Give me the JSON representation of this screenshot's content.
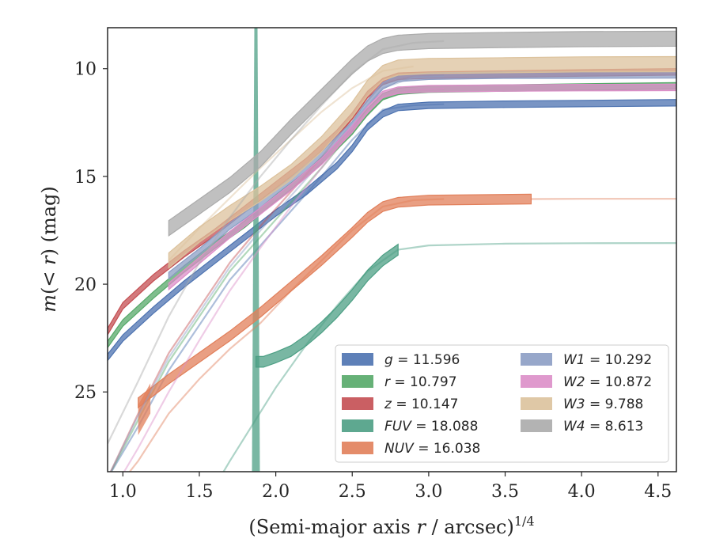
{
  "chart_data": {
    "type": "line",
    "title": "",
    "xlabel": "(Semi-major axis r / arcsec)^{1/4}",
    "xlabel_parts": {
      "prefix": "(Semi-major axis ",
      "var": "r",
      "middle": " / arcsec)",
      "sup": "1/4"
    },
    "ylabel": "m(< r) (mag)",
    "ylabel_parts": {
      "m": "m",
      "open": "(",
      "lt": "<",
      "r": "r",
      "close": ")",
      "unit": " (mag)"
    },
    "xlim": [
      0.9,
      4.62
    ],
    "ylim": [
      28.7,
      8.1
    ],
    "y_inverted": true,
    "xticks": [
      1.0,
      1.5,
      2.0,
      2.5,
      3.0,
      3.5,
      4.0,
      4.5
    ],
    "xtick_labels": [
      "1.0",
      "1.5",
      "2.0",
      "2.5",
      "3.0",
      "3.5",
      "4.0",
      "4.5"
    ],
    "yticks": [
      10,
      15,
      20,
      25
    ],
    "ytick_labels": [
      "10",
      "15",
      "20",
      "25"
    ],
    "grid": false,
    "legend_position": "lower-right",
    "legend_columns": 2,
    "series": [
      {
        "name": "g",
        "value_label": "11.596",
        "color": "#4c72b0",
        "main": [
          [
            0.9,
            23.4
          ],
          [
            1.0,
            22.5
          ],
          [
            1.2,
            21.2
          ],
          [
            1.4,
            20.0
          ],
          [
            1.6,
            18.9
          ],
          [
            1.8,
            17.8
          ],
          [
            2.0,
            16.7
          ],
          [
            2.2,
            15.7
          ],
          [
            2.4,
            14.5
          ],
          [
            2.5,
            13.7
          ],
          [
            2.6,
            12.7
          ],
          [
            2.7,
            12.1
          ],
          [
            2.8,
            11.8
          ],
          [
            3.0,
            11.7
          ],
          [
            3.5,
            11.65
          ],
          [
            4.0,
            11.62
          ],
          [
            4.62,
            11.58
          ]
        ],
        "main_width": 0.3,
        "faint": [
          [
            0.9,
            29.0
          ],
          [
            1.1,
            26.6
          ],
          [
            1.3,
            24.0
          ],
          [
            1.5,
            21.9
          ],
          [
            1.7,
            19.8
          ],
          [
            1.9,
            18.2
          ],
          [
            2.1,
            16.6
          ],
          [
            2.3,
            15.0
          ],
          [
            2.5,
            13.3
          ],
          [
            2.7,
            11.9
          ],
          [
            2.9,
            11.7
          ],
          [
            3.1,
            11.65
          ]
        ],
        "faint_width": 0.5,
        "band_start": null
      },
      {
        "name": "r",
        "value_label": "10.797",
        "color": "#55a868",
        "main": [
          [
            0.9,
            22.8
          ],
          [
            1.0,
            21.8
          ],
          [
            1.2,
            20.5
          ],
          [
            1.4,
            19.3
          ],
          [
            1.6,
            18.2
          ],
          [
            1.8,
            17.2
          ],
          [
            2.0,
            16.0
          ],
          [
            2.2,
            14.9
          ],
          [
            2.4,
            13.6
          ],
          [
            2.5,
            12.9
          ],
          [
            2.6,
            12.0
          ],
          [
            2.7,
            11.3
          ],
          [
            2.8,
            11.05
          ],
          [
            3.0,
            10.95
          ],
          [
            3.5,
            10.9
          ],
          [
            4.0,
            10.85
          ],
          [
            4.62,
            10.8
          ]
        ],
        "main_width": 0.3,
        "faint": [
          [
            0.9,
            29.0
          ],
          [
            1.1,
            26.3
          ],
          [
            1.3,
            23.6
          ],
          [
            1.5,
            21.5
          ],
          [
            1.7,
            19.4
          ],
          [
            1.9,
            17.8
          ],
          [
            2.1,
            16.2
          ],
          [
            2.3,
            14.6
          ],
          [
            2.5,
            12.9
          ],
          [
            2.7,
            11.4
          ],
          [
            2.9,
            11.0
          ],
          [
            3.1,
            10.95
          ]
        ],
        "faint_width": 0.5,
        "band_start": null
      },
      {
        "name": "z",
        "value_label": "10.147",
        "color": "#c44e52",
        "main": [
          [
            0.9,
            22.2
          ],
          [
            1.0,
            21.0
          ],
          [
            1.2,
            19.7
          ],
          [
            1.4,
            18.6
          ],
          [
            1.6,
            17.6
          ],
          [
            1.8,
            16.5
          ],
          [
            2.0,
            15.4
          ],
          [
            2.2,
            14.3
          ],
          [
            2.4,
            13.0
          ],
          [
            2.5,
            12.2
          ],
          [
            2.6,
            11.2
          ],
          [
            2.7,
            10.6
          ],
          [
            2.8,
            10.35
          ],
          [
            3.0,
            10.3
          ],
          [
            3.5,
            10.25
          ],
          [
            4.0,
            10.2
          ],
          [
            4.62,
            10.15
          ]
        ],
        "main_width": 0.3,
        "faint": [
          [
            0.9,
            29.0
          ],
          [
            1.1,
            26.0
          ],
          [
            1.3,
            23.2
          ],
          [
            1.5,
            21.1
          ],
          [
            1.7,
            19.0
          ],
          [
            1.9,
            17.3
          ],
          [
            2.1,
            15.7
          ],
          [
            2.3,
            14.1
          ],
          [
            2.5,
            12.3
          ],
          [
            2.7,
            10.7
          ],
          [
            2.9,
            10.35
          ],
          [
            3.1,
            10.3
          ]
        ],
        "faint_width": 0.5,
        "band_start": null
      },
      {
        "name": "FUV",
        "value_label": "18.088",
        "color": "#4c9f84",
        "main": [
          [
            1.87,
            23.6
          ],
          [
            1.92,
            23.6
          ],
          [
            2.0,
            23.4
          ],
          [
            2.1,
            23.1
          ],
          [
            2.2,
            22.6
          ],
          [
            2.3,
            22.0
          ],
          [
            2.4,
            21.3
          ],
          [
            2.5,
            20.5
          ],
          [
            2.6,
            19.6
          ],
          [
            2.7,
            18.9
          ],
          [
            2.8,
            18.4
          ]
        ],
        "main_width": 0.5,
        "faint": [
          [
            2.8,
            18.4
          ],
          [
            3.0,
            18.2
          ],
          [
            3.5,
            18.12
          ],
          [
            4.0,
            18.1
          ],
          [
            4.62,
            18.09
          ]
        ],
        "faint_width": 0.5,
        "faint_extra": [
          [
            1.55,
            30.0
          ],
          [
            1.7,
            28.2
          ],
          [
            1.85,
            26.5
          ],
          [
            2.0,
            24.8
          ],
          [
            2.2,
            22.8
          ],
          [
            2.4,
            21.0
          ],
          [
            2.6,
            19.4
          ],
          [
            2.8,
            18.4
          ]
        ],
        "band_start": null,
        "spike": {
          "x": 1.87,
          "top": 8.1,
          "bottom": 28.7
        }
      },
      {
        "name": "NUV",
        "value_label": "16.038",
        "color": "#e17f5a",
        "main": [
          [
            1.1,
            25.5
          ],
          [
            1.3,
            24.4
          ],
          [
            1.5,
            23.4
          ],
          [
            1.7,
            22.4
          ],
          [
            1.9,
            21.3
          ],
          [
            2.1,
            20.1
          ],
          [
            2.3,
            18.9
          ],
          [
            2.5,
            17.6
          ],
          [
            2.6,
            16.9
          ],
          [
            2.7,
            16.4
          ],
          [
            2.8,
            16.2
          ],
          [
            3.0,
            16.1
          ],
          [
            3.67,
            16.05
          ]
        ],
        "main_width": 0.45,
        "faint": [
          [
            3.67,
            16.05
          ],
          [
            4.0,
            16.04
          ],
          [
            4.62,
            16.04
          ]
        ],
        "faint_width": 0.4,
        "faint_extra": [
          [
            0.9,
            30.0
          ],
          [
            1.1,
            28.2
          ],
          [
            1.3,
            26.0
          ],
          [
            1.5,
            24.4
          ],
          [
            1.7,
            23.0
          ],
          [
            1.9,
            21.8
          ],
          [
            2.1,
            20.3
          ],
          [
            2.3,
            18.9
          ],
          [
            2.5,
            17.5
          ],
          [
            2.7,
            16.4
          ],
          [
            2.9,
            16.1
          ],
          [
            3.1,
            16.05
          ]
        ],
        "band_start": [
          1.1,
          25.6,
          27.0
        ]
      },
      {
        "name": "W1",
        "value_label": "10.292",
        "color": "#8c9dc4",
        "main": [
          [
            1.3,
            19.6
          ],
          [
            1.5,
            18.5
          ],
          [
            1.7,
            17.3
          ],
          [
            1.9,
            16.3
          ],
          [
            2.1,
            15.2
          ],
          [
            2.3,
            14.0
          ],
          [
            2.5,
            12.6
          ],
          [
            2.6,
            11.6
          ],
          [
            2.7,
            10.8
          ],
          [
            2.8,
            10.45
          ],
          [
            3.0,
            10.35
          ],
          [
            3.5,
            10.3
          ],
          [
            4.0,
            10.3
          ],
          [
            4.62,
            10.29
          ]
        ],
        "main_width": 0.3,
        "faint": [
          [
            0.9,
            29.0
          ],
          [
            1.1,
            26.1
          ],
          [
            1.3,
            23.4
          ],
          [
            1.5,
            21.3
          ],
          [
            1.7,
            19.2
          ],
          [
            1.9,
            17.5
          ],
          [
            2.1,
            15.9
          ],
          [
            2.3,
            14.3
          ],
          [
            2.5,
            12.5
          ],
          [
            2.7,
            10.9
          ],
          [
            2.9,
            10.4
          ],
          [
            3.1,
            10.35
          ]
        ],
        "faint_width": 0.5,
        "band_start": null
      },
      {
        "name": "W2",
        "value_label": "10.872",
        "color": "#dc8ec8",
        "main": [
          [
            1.3,
            20.1
          ],
          [
            1.5,
            18.9
          ],
          [
            1.7,
            17.7
          ],
          [
            1.9,
            16.6
          ],
          [
            2.1,
            15.5
          ],
          [
            2.3,
            14.3
          ],
          [
            2.5,
            12.8
          ],
          [
            2.6,
            11.9
          ],
          [
            2.7,
            11.2
          ],
          [
            2.8,
            11.0
          ],
          [
            3.0,
            10.93
          ],
          [
            3.5,
            10.9
          ],
          [
            4.0,
            10.88
          ],
          [
            4.62,
            10.87
          ]
        ],
        "main_width": 0.3,
        "faint": [
          [
            0.9,
            30.0
          ],
          [
            1.1,
            27.6
          ],
          [
            1.3,
            25.0
          ],
          [
            1.5,
            22.6
          ],
          [
            1.7,
            20.3
          ],
          [
            1.9,
            18.3
          ],
          [
            2.1,
            16.4
          ],
          [
            2.3,
            14.6
          ],
          [
            2.5,
            12.8
          ],
          [
            2.7,
            11.3
          ],
          [
            2.9,
            11.0
          ],
          [
            3.1,
            10.93
          ]
        ],
        "faint_width": 0.5,
        "band_start": null
      },
      {
        "name": "W3",
        "value_label": "9.788",
        "color": "#dcc29c",
        "main": [
          [
            1.3,
            18.9
          ],
          [
            1.5,
            17.7
          ],
          [
            1.7,
            16.7
          ],
          [
            1.9,
            15.8
          ],
          [
            2.1,
            14.8
          ],
          [
            2.3,
            13.5
          ],
          [
            2.5,
            11.9
          ],
          [
            2.6,
            10.9
          ],
          [
            2.7,
            10.2
          ],
          [
            2.8,
            9.95
          ],
          [
            3.0,
            9.88
          ],
          [
            3.5,
            9.84
          ],
          [
            4.0,
            9.8
          ],
          [
            4.62,
            9.79
          ]
        ],
        "main_width": 0.7,
        "faint": [
          [
            1.3,
            18.9
          ],
          [
            1.5,
            17.4
          ],
          [
            1.7,
            16.0
          ],
          [
            1.9,
            14.6
          ],
          [
            2.1,
            13.3
          ],
          [
            2.3,
            12.0
          ],
          [
            2.5,
            10.9
          ],
          [
            2.7,
            10.1
          ],
          [
            2.9,
            9.9
          ]
        ],
        "faint_width": 0.5,
        "band_start": null
      },
      {
        "name": "W4",
        "value_label": "8.613",
        "color": "#ababab",
        "main": [
          [
            1.3,
            17.4
          ],
          [
            1.5,
            16.4
          ],
          [
            1.7,
            15.4
          ],
          [
            1.9,
            14.2
          ],
          [
            2.1,
            12.7
          ],
          [
            2.3,
            11.3
          ],
          [
            2.5,
            9.9
          ],
          [
            2.6,
            9.3
          ],
          [
            2.7,
            8.95
          ],
          [
            2.8,
            8.8
          ],
          [
            3.0,
            8.72
          ],
          [
            3.5,
            8.67
          ],
          [
            4.0,
            8.63
          ],
          [
            4.62,
            8.61
          ]
        ],
        "main_width": 0.7,
        "faint": [
          [
            0.9,
            27.4
          ],
          [
            1.1,
            24.5
          ],
          [
            1.3,
            21.5
          ],
          [
            1.5,
            19.0
          ],
          [
            1.7,
            16.9
          ],
          [
            1.9,
            15.0
          ],
          [
            2.1,
            13.3
          ],
          [
            2.3,
            11.7
          ],
          [
            2.5,
            10.2
          ],
          [
            2.7,
            9.1
          ],
          [
            2.9,
            8.8
          ],
          [
            3.1,
            8.72
          ]
        ],
        "faint_width": 0.5,
        "band_start": null
      }
    ]
  }
}
